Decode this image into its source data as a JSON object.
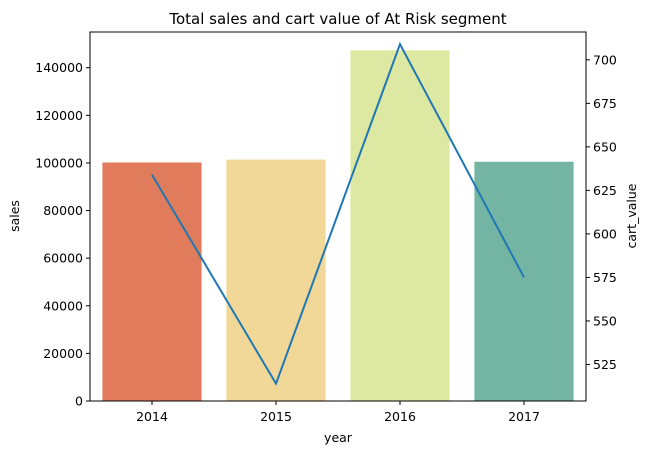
{
  "chart_data": {
    "type": "bar",
    "title": "Total sales and cart value of At Risk segment",
    "xlabel": "year",
    "ylabel": "sales",
    "y2label": "cart_value",
    "categories": [
      "2014",
      "2015",
      "2016",
      "2017"
    ],
    "ylim": [
      0,
      155000
    ],
    "yticks": [
      0,
      20000,
      40000,
      60000,
      80000,
      100000,
      120000,
      140000
    ],
    "y2lim": [
      504,
      716
    ],
    "y2ticks": [
      525,
      550,
      575,
      600,
      625,
      650,
      675,
      700
    ],
    "series": [
      {
        "type": "bar",
        "axis": "left",
        "values": [
          100200,
          101400,
          147300,
          100500
        ],
        "colors": [
          "#e07b5c",
          "#f1d898",
          "#dde9a2",
          "#73b5a2"
        ]
      },
      {
        "type": "line",
        "axis": "right",
        "values": [
          634,
          514,
          709,
          575
        ],
        "color": "#1f77b4"
      }
    ],
    "grid": false,
    "legend": "none"
  }
}
